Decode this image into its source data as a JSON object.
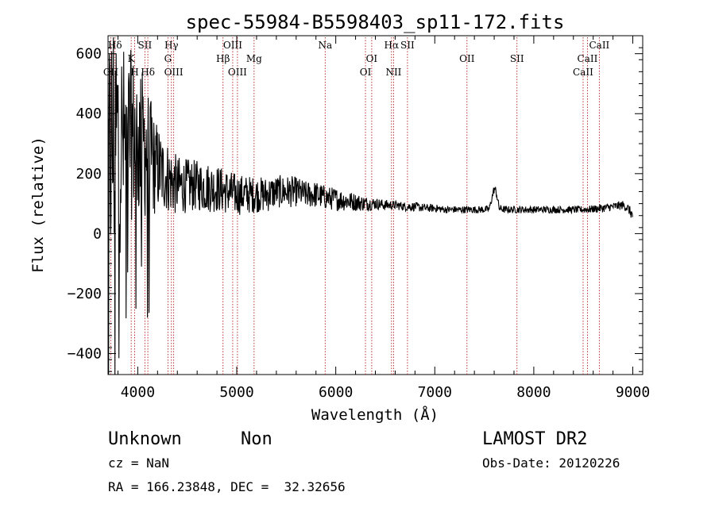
{
  "chart_data": {
    "type": "line",
    "title": "spec-55984-B5598403_sp11-172.fits",
    "xlabel": "Wavelength (Å)",
    "ylabel": "Flux (relative)",
    "xlim": [
      3700,
      9100
    ],
    "ylim": [
      -470,
      660
    ],
    "x_ticks": [
      4000,
      5000,
      6000,
      7000,
      8000,
      9000
    ],
    "y_ticks": [
      -400,
      -200,
      0,
      200,
      400,
      600
    ],
    "grid": false,
    "line_color": "#000000",
    "marker_color": "#b22222",
    "spectrum_envelope": {
      "x": [
        3700,
        3750,
        3800,
        3850,
        3900,
        3950,
        4000,
        4050,
        4100,
        4150,
        4200,
        4250,
        4300,
        4350,
        4400,
        4500,
        4600,
        4700,
        4800,
        4900,
        5000,
        5100,
        5200,
        5300,
        5400,
        5500,
        5600,
        5700,
        5800,
        5900,
        6000,
        6100,
        6200,
        6300,
        6400,
        6500,
        6600,
        6700,
        6800,
        6900,
        7000,
        7100,
        7200,
        7300,
        7400,
        7500,
        7550,
        7600,
        7620,
        7650,
        7700,
        7800,
        7900,
        8000,
        8100,
        8200,
        8300,
        8400,
        8500,
        8600,
        8700,
        8800,
        8900,
        8950,
        9000
      ],
      "mean": [
        250,
        300,
        330,
        300,
        320,
        330,
        300,
        300,
        280,
        230,
        220,
        200,
        190,
        170,
        160,
        160,
        160,
        155,
        150,
        140,
        130,
        130,
        130,
        130,
        140,
        140,
        140,
        130,
        130,
        120,
        115,
        110,
        105,
        100,
        100,
        95,
        95,
        90,
        90,
        85,
        85,
        80,
        80,
        80,
        80,
        80,
        82,
        150,
        140,
        85,
        80,
        80,
        80,
        80,
        80,
        80,
        80,
        80,
        80,
        82,
        85,
        90,
        95,
        85,
        60
      ],
      "amplitude": [
        420,
        480,
        420,
        340,
        300,
        280,
        260,
        250,
        240,
        180,
        150,
        130,
        120,
        110,
        100,
        90,
        85,
        85,
        80,
        75,
        70,
        65,
        60,
        60,
        55,
        55,
        50,
        45,
        45,
        40,
        38,
        35,
        30,
        25,
        20,
        18,
        15,
        15,
        15,
        14,
        13,
        12,
        12,
        12,
        12,
        12,
        12,
        15,
        15,
        12,
        12,
        12,
        12,
        12,
        12,
        12,
        12,
        12,
        12,
        13,
        14,
        14,
        15,
        15,
        20
      ]
    },
    "lines": [
      {
        "label": "Hδ",
        "x": 3770,
        "row": 0
      },
      {
        "label": "OII",
        "x": 3728,
        "row": 2
      },
      {
        "label": "K",
        "x": 3934,
        "row": 1
      },
      {
        "label": "SII",
        "x": 4072,
        "row": 0
      },
      {
        "label": "H",
        "x": 3969,
        "row": 2
      },
      {
        "label": "Hδ",
        "x": 4102,
        "row": 2
      },
      {
        "label": "Hγ",
        "x": 4340,
        "row": 0
      },
      {
        "label": "G",
        "x": 4305,
        "row": 1
      },
      {
        "label": "OIII",
        "x": 4363,
        "row": 2
      },
      {
        "label": "OIII",
        "x": 4959,
        "row": 0
      },
      {
        "label": "Hβ",
        "x": 4861,
        "row": 1
      },
      {
        "label": "OIII",
        "x": 5007,
        "row": 2
      },
      {
        "label": "Mg",
        "x": 5175,
        "row": 1
      },
      {
        "label": "Na",
        "x": 5893,
        "row": 0
      },
      {
        "label": "OI",
        "x": 6363,
        "row": 1
      },
      {
        "label": "OI",
        "x": 6300,
        "row": 2
      },
      {
        "label": "Hα",
        "x": 6563,
        "row": 0
      },
      {
        "label": "SII",
        "x": 6724,
        "row": 0
      },
      {
        "label": "NII",
        "x": 6584,
        "row": 2
      },
      {
        "label": "OII",
        "x": 7325,
        "row": 1
      },
      {
        "label": "SII",
        "x": 7830,
        "row": 1
      },
      {
        "label": "CaII",
        "x": 8662,
        "row": 0
      },
      {
        "label": "CaII",
        "x": 8542,
        "row": 1
      },
      {
        "label": "CaII",
        "x": 8498,
        "row": 2
      }
    ]
  },
  "info": {
    "object_class": "Unknown",
    "subclass": "Non",
    "survey": "LAMOST DR2",
    "redshift": "cz = NaN",
    "obs_date": "Obs-Date: 20120226",
    "coords": "RA = 166.23848, DEC =  32.32656"
  }
}
